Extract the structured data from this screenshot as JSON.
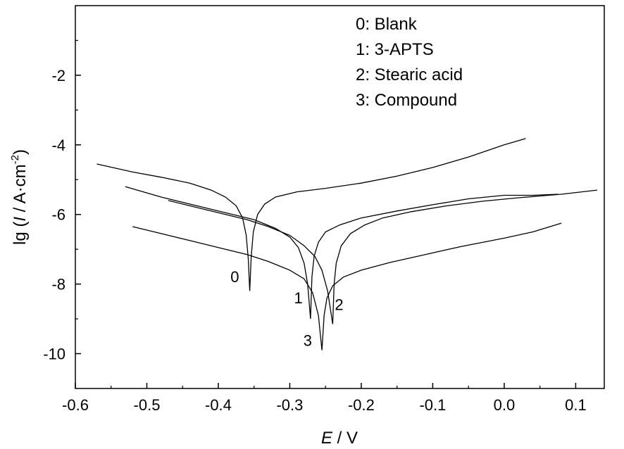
{
  "chart_data": {
    "type": "line",
    "xlabel": {
      "italic": "E",
      "rest": " / V"
    },
    "ylabel": {
      "pre": "lg (",
      "italic": "I",
      "post": " / A·cm",
      "sup": "-2",
      "close": ")"
    },
    "xlim": [
      -0.6,
      0.14
    ],
    "ylim": [
      -11,
      0
    ],
    "xticks": [
      -0.6,
      -0.5,
      -0.4,
      -0.3,
      -0.2,
      -0.1,
      0.0,
      0.1
    ],
    "xtick_labels": [
      "-0.6",
      "-0.5",
      "-0.4",
      "-0.3",
      "-0.2",
      "-0.1",
      "0.0",
      "0.1"
    ],
    "yticks": [
      -2,
      -4,
      -6,
      -8,
      -10
    ],
    "ytick_labels": [
      "-2",
      "-4",
      "-6",
      "-8",
      "-10"
    ],
    "minor_xticks": [
      -0.55,
      -0.45,
      -0.35,
      -0.25,
      -0.15,
      -0.05,
      0.05
    ],
    "minor_yticks": [
      -1,
      -3,
      -5,
      -7,
      -9
    ],
    "legend": [
      "0: Blank",
      "1: 3-APTS",
      "2: Stearic acid",
      "3: Compound"
    ],
    "legend_position": "top-right",
    "series": [
      {
        "label": "0",
        "label_pos": [
          -0.377,
          -7.95
        ],
        "corrosion_potential": -0.356,
        "min_lg": -8.2,
        "cathodic": [
          [
            -0.57,
            -4.55
          ],
          [
            -0.52,
            -4.78
          ],
          [
            -0.48,
            -4.93
          ],
          [
            -0.44,
            -5.1
          ],
          [
            -0.41,
            -5.3
          ],
          [
            -0.39,
            -5.5
          ],
          [
            -0.375,
            -5.75
          ],
          [
            -0.366,
            -6.1
          ],
          [
            -0.361,
            -6.6
          ],
          [
            -0.358,
            -7.3
          ],
          [
            -0.356,
            -8.2
          ]
        ],
        "anodic": [
          [
            -0.356,
            -8.2
          ],
          [
            -0.354,
            -7.2
          ],
          [
            -0.351,
            -6.5
          ],
          [
            -0.345,
            -6.0
          ],
          [
            -0.335,
            -5.7
          ],
          [
            -0.32,
            -5.5
          ],
          [
            -0.29,
            -5.35
          ],
          [
            -0.25,
            -5.25
          ],
          [
            -0.2,
            -5.1
          ],
          [
            -0.15,
            -4.9
          ],
          [
            -0.1,
            -4.65
          ],
          [
            -0.05,
            -4.35
          ],
          [
            0.0,
            -4.0
          ],
          [
            0.03,
            -3.82
          ]
        ]
      },
      {
        "label": "1",
        "label_pos": [
          -0.288,
          -8.55
        ],
        "corrosion_potential": -0.271,
        "min_lg": -9.0,
        "cathodic": [
          [
            -0.53,
            -5.2
          ],
          [
            -0.48,
            -5.5
          ],
          [
            -0.43,
            -5.75
          ],
          [
            -0.39,
            -5.95
          ],
          [
            -0.35,
            -6.15
          ],
          [
            -0.32,
            -6.4
          ],
          [
            -0.3,
            -6.65
          ],
          [
            -0.288,
            -6.95
          ],
          [
            -0.28,
            -7.4
          ],
          [
            -0.275,
            -8.0
          ],
          [
            -0.271,
            -9.0
          ]
        ],
        "anodic": [
          [
            -0.271,
            -9.0
          ],
          [
            -0.269,
            -7.8
          ],
          [
            -0.266,
            -7.2
          ],
          [
            -0.26,
            -6.8
          ],
          [
            -0.25,
            -6.5
          ],
          [
            -0.23,
            -6.3
          ],
          [
            -0.2,
            -6.1
          ],
          [
            -0.15,
            -5.9
          ],
          [
            -0.1,
            -5.72
          ],
          [
            -0.05,
            -5.55
          ],
          [
            0.0,
            -5.45
          ],
          [
            0.04,
            -5.45
          ],
          [
            0.075,
            -5.42
          ]
        ]
      },
      {
        "label": "2",
        "label_pos": [
          -0.231,
          -8.75
        ],
        "corrosion_potential": -0.24,
        "min_lg": -9.15,
        "cathodic": [
          [
            -0.47,
            -5.6
          ],
          [
            -0.44,
            -5.75
          ],
          [
            -0.4,
            -5.95
          ],
          [
            -0.36,
            -6.15
          ],
          [
            -0.33,
            -6.35
          ],
          [
            -0.3,
            -6.6
          ],
          [
            -0.28,
            -6.9
          ],
          [
            -0.265,
            -7.2
          ],
          [
            -0.255,
            -7.6
          ],
          [
            -0.247,
            -8.2
          ],
          [
            -0.24,
            -9.15
          ]
        ],
        "anodic": [
          [
            -0.24,
            -9.15
          ],
          [
            -0.238,
            -8.0
          ],
          [
            -0.235,
            -7.4
          ],
          [
            -0.228,
            -6.9
          ],
          [
            -0.215,
            -6.55
          ],
          [
            -0.195,
            -6.3
          ],
          [
            -0.17,
            -6.1
          ],
          [
            -0.13,
            -5.92
          ],
          [
            -0.08,
            -5.75
          ],
          [
            -0.03,
            -5.62
          ],
          [
            0.02,
            -5.52
          ],
          [
            0.08,
            -5.42
          ],
          [
            0.13,
            -5.3
          ]
        ]
      },
      {
        "label": "3",
        "label_pos": [
          -0.275,
          -9.78
        ],
        "corrosion_potential": -0.255,
        "min_lg": -9.9,
        "cathodic": [
          [
            -0.52,
            -6.35
          ],
          [
            -0.48,
            -6.55
          ],
          [
            -0.44,
            -6.75
          ],
          [
            -0.4,
            -6.95
          ],
          [
            -0.36,
            -7.15
          ],
          [
            -0.33,
            -7.35
          ],
          [
            -0.3,
            -7.6
          ],
          [
            -0.28,
            -7.85
          ],
          [
            -0.268,
            -8.25
          ],
          [
            -0.26,
            -8.9
          ],
          [
            -0.255,
            -9.9
          ]
        ],
        "anodic": [
          [
            -0.255,
            -9.9
          ],
          [
            -0.252,
            -8.9
          ],
          [
            -0.248,
            -8.4
          ],
          [
            -0.24,
            -8.05
          ],
          [
            -0.225,
            -7.8
          ],
          [
            -0.2,
            -7.6
          ],
          [
            -0.16,
            -7.38
          ],
          [
            -0.11,
            -7.15
          ],
          [
            -0.06,
            -6.92
          ],
          [
            0.0,
            -6.68
          ],
          [
            0.04,
            -6.5
          ],
          [
            0.08,
            -6.25
          ]
        ]
      }
    ]
  }
}
